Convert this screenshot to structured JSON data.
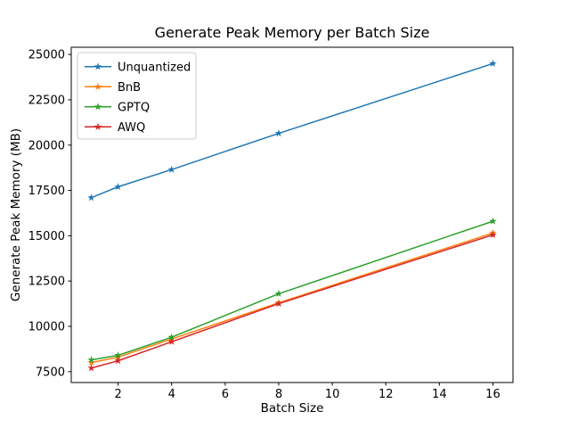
{
  "chart": {
    "title": "Generate Peak Memory per Batch Size",
    "xlabel": "Batch Size",
    "ylabel": "Generate Peak Memory (MB)"
  },
  "chart_data": {
    "type": "line",
    "title": "Generate Peak Memory per Batch Size",
    "xlabel": "Batch Size",
    "ylabel": "Generate Peak Memory (MB)",
    "x": [
      1,
      2,
      4,
      8,
      16
    ],
    "series": [
      {
        "name": "Unquantized",
        "color": "#1f77b4",
        "values": [
          17100,
          17700,
          18650,
          20650,
          24500
        ]
      },
      {
        "name": "BnB",
        "color": "#ff7f0e",
        "values": [
          8000,
          8300,
          9300,
          11300,
          15150
        ]
      },
      {
        "name": "GPTQ",
        "color": "#2ca02c",
        "values": [
          8150,
          8400,
          9400,
          11800,
          15800
        ]
      },
      {
        "name": "AWQ",
        "color": "#d62728",
        "values": [
          7700,
          8100,
          9150,
          11250,
          15050
        ]
      }
    ],
    "xticks": [
      2,
      4,
      6,
      8,
      10,
      12,
      14,
      16
    ],
    "yticks": [
      7500,
      10000,
      12500,
      15000,
      17500,
      20000,
      22500,
      25000
    ],
    "xlim": [
      0.25,
      16.75
    ],
    "ylim": [
      6900,
      25400
    ],
    "marker": "star",
    "grid": false,
    "legend_position": "upper left",
    "axis_color": "#000000",
    "legend_border_color": "#cccccc",
    "background_color": "#ffffff"
  }
}
